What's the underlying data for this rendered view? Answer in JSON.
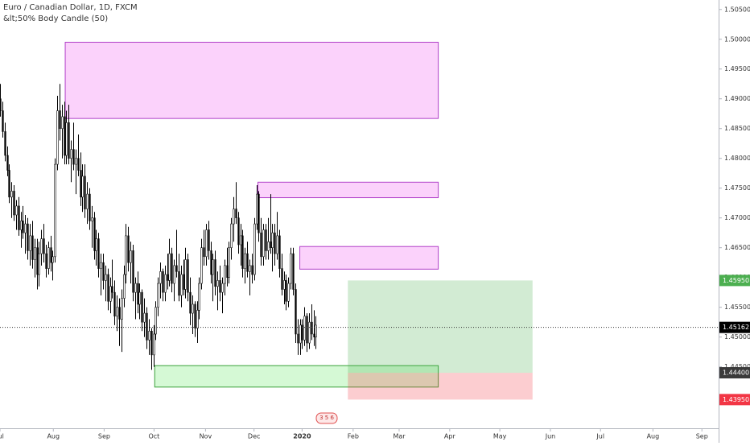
{
  "chart_data": {
    "type": "candlestick",
    "title": "Euro / Canadian Dollar, 1D, FXCM",
    "subtitle": "&lt;50% Body Candle (50)",
    "event_marker": "3 5 6",
    "up_color": "#ffffff",
    "down_color": "#000000",
    "wick_color": "#000000",
    "grid": false,
    "xlim": [
      0,
      314
    ],
    "xticks": [
      {
        "value": 0,
        "label": "Jul"
      },
      {
        "value": 23.3,
        "label": "Aug"
      },
      {
        "value": 45.5,
        "label": "Sep"
      },
      {
        "value": 67.3,
        "label": "Oct"
      },
      {
        "value": 89.8,
        "label": "Nov"
      },
      {
        "value": 111,
        "label": "Dec"
      },
      {
        "value": 132,
        "label": "2020"
      },
      {
        "value": 154.3,
        "label": "Feb"
      },
      {
        "value": 174.4,
        "label": "Mar"
      },
      {
        "value": 196.5,
        "label": "Apr"
      },
      {
        "value": 218.4,
        "label": "May"
      },
      {
        "value": 240.5,
        "label": "Jun"
      },
      {
        "value": 262.4,
        "label": "Jul"
      },
      {
        "value": 285.3,
        "label": "Aug"
      },
      {
        "value": 306.7,
        "label": "Sep"
      }
    ],
    "ylim": [
      1.43468,
      1.50659
    ],
    "yticks": [
      {
        "value": 1.505,
        "label": "1.50500"
      },
      {
        "value": 1.5,
        "label": "1.50000"
      },
      {
        "value": 1.495,
        "label": "1.49500"
      },
      {
        "value": 1.49,
        "label": "1.49000"
      },
      {
        "value": 1.485,
        "label": "1.48500"
      },
      {
        "value": 1.48,
        "label": "1.48000"
      },
      {
        "value": 1.475,
        "label": "1.47500"
      },
      {
        "value": 1.47,
        "label": "1.47000"
      },
      {
        "value": 1.465,
        "label": "1.46500"
      },
      {
        "value": 1.46,
        "label": "1.46000"
      },
      {
        "value": 1.455,
        "label": "1.45500"
      },
      {
        "value": 1.45,
        "label": "1.45000"
      },
      {
        "value": 1.445,
        "label": "1.44500"
      }
    ],
    "current_price": {
      "value": 1.45162,
      "label": "1.45162"
    },
    "price_labels": [
      {
        "value": 1.4595,
        "label": "1.45950",
        "color": "#4caf50"
      },
      {
        "value": 1.444,
        "label": "1.44400",
        "color": "#3a3a3a"
      },
      {
        "value": 1.4395,
        "label": "1.43950",
        "color": "#f23645"
      }
    ],
    "zones": [
      {
        "x1": 28.5,
        "x2": 191.5,
        "top": 1.4995,
        "bottom": 1.4867,
        "fill": "rgba(244,143,244,0.4)",
        "stroke": "#b040c8"
      },
      {
        "x1": 112.7,
        "x2": 191.5,
        "top": 1.476,
        "bottom": 1.4734,
        "fill": "rgba(244,143,244,0.4)",
        "stroke": "#b040c8"
      },
      {
        "x1": 131,
        "x2": 191.5,
        "top": 1.4652,
        "bottom": 1.4614,
        "fill": "rgba(244,143,244,0.4)",
        "stroke": "#b040c8"
      },
      {
        "x1": 67.6,
        "x2": 191.5,
        "top": 1.4452,
        "bottom": 1.4416,
        "fill": "rgba(150,240,150,0.4)",
        "stroke": "#3aa03a"
      },
      {
        "x1": 152,
        "x2": 232.7,
        "top": 1.4595,
        "bottom": 1.444,
        "fill": "rgba(76,175,80,0.25)",
        "stroke": "none"
      },
      {
        "x1": 152,
        "x2": 232.7,
        "top": 1.444,
        "bottom": 1.4395,
        "fill": "rgba(242,54,69,0.25)",
        "stroke": "none"
      }
    ],
    "candles": [
      [
        1.49,
        1.4925,
        1.487,
        1.488
      ],
      [
        1.488,
        1.4895,
        1.4835,
        1.4845
      ],
      [
        1.4845,
        1.486,
        1.4795,
        1.4805
      ],
      [
        1.4805,
        1.482,
        1.477,
        1.478
      ],
      [
        1.478,
        1.479,
        1.4725,
        1.4735
      ],
      [
        1.4735,
        1.476,
        1.47,
        1.4745
      ],
      [
        1.4745,
        1.4755,
        1.4695,
        1.4705
      ],
      [
        1.4705,
        1.473,
        1.468,
        1.472
      ],
      [
        1.472,
        1.4735,
        1.467,
        1.468
      ],
      [
        1.468,
        1.471,
        1.465,
        1.4695
      ],
      [
        1.4695,
        1.472,
        1.4665,
        1.4675
      ],
      [
        1.4675,
        1.4705,
        1.464,
        1.469
      ],
      [
        1.469,
        1.47,
        1.463,
        1.4645
      ],
      [
        1.4645,
        1.469,
        1.462,
        1.467
      ],
      [
        1.467,
        1.4695,
        1.4615,
        1.463
      ],
      [
        1.463,
        1.4665,
        1.46,
        1.465
      ],
      [
        1.465,
        1.4665,
        1.458,
        1.4605
      ],
      [
        1.4605,
        1.466,
        1.4585,
        1.464
      ],
      [
        1.464,
        1.468,
        1.462,
        1.4665
      ],
      [
        1.4665,
        1.469,
        1.4625,
        1.464
      ],
      [
        1.464,
        1.4655,
        1.46,
        1.4615
      ],
      [
        1.4615,
        1.466,
        1.4605,
        1.465
      ],
      [
        1.465,
        1.467,
        1.461,
        1.4625
      ],
      [
        1.4625,
        1.4645,
        1.4595,
        1.4635
      ],
      [
        1.4635,
        1.48,
        1.4625,
        1.479
      ],
      [
        1.479,
        1.4905,
        1.478,
        1.488
      ],
      [
        1.488,
        1.4925,
        1.483,
        1.485
      ],
      [
        1.485,
        1.489,
        1.48,
        1.487
      ],
      [
        1.487,
        1.4895,
        1.479,
        1.4805
      ],
      [
        1.4805,
        1.488,
        1.479,
        1.486
      ],
      [
        1.486,
        1.489,
        1.479,
        1.48
      ],
      [
        1.48,
        1.483,
        1.476,
        1.4815
      ],
      [
        1.4815,
        1.486,
        1.478,
        1.479
      ],
      [
        1.479,
        1.4815,
        1.474,
        1.48
      ],
      [
        1.48,
        1.484,
        1.477,
        1.478
      ],
      [
        1.478,
        1.481,
        1.472,
        1.4735
      ],
      [
        1.4735,
        1.479,
        1.471,
        1.477
      ],
      [
        1.477,
        1.479,
        1.47,
        1.4715
      ],
      [
        1.4715,
        1.476,
        1.469,
        1.474
      ],
      [
        1.474,
        1.475,
        1.468,
        1.4695
      ],
      [
        1.4695,
        1.472,
        1.465,
        1.47
      ],
      [
        1.47,
        1.471,
        1.463,
        1.4645
      ],
      [
        1.4645,
        1.468,
        1.462,
        1.4665
      ],
      [
        1.4665,
        1.4675,
        1.46,
        1.4615
      ],
      [
        1.4615,
        1.464,
        1.457,
        1.4625
      ],
      [
        1.4625,
        1.464,
        1.458,
        1.4595
      ],
      [
        1.4595,
        1.462,
        1.456,
        1.4605
      ],
      [
        1.4605,
        1.4615,
        1.4545,
        1.456
      ],
      [
        1.456,
        1.46,
        1.454,
        1.4585
      ],
      [
        1.4585,
        1.463,
        1.4565,
        1.4575
      ],
      [
        1.4575,
        1.4595,
        1.452,
        1.4535
      ],
      [
        1.4535,
        1.457,
        1.451,
        1.455
      ],
      [
        1.455,
        1.4565,
        1.4485,
        1.453
      ],
      [
        1.453,
        1.458,
        1.4475,
        1.4565
      ],
      [
        1.4565,
        1.462,
        1.455,
        1.4605
      ],
      [
        1.4605,
        1.469,
        1.459,
        1.467
      ],
      [
        1.467,
        1.4685,
        1.461,
        1.4625
      ],
      [
        1.4625,
        1.466,
        1.459,
        1.4645
      ],
      [
        1.4645,
        1.4655,
        1.456,
        1.4575
      ],
      [
        1.4575,
        1.46,
        1.453,
        1.459
      ],
      [
        1.459,
        1.461,
        1.454,
        1.4555
      ],
      [
        1.4555,
        1.459,
        1.453,
        1.4575
      ],
      [
        1.4575,
        1.458,
        1.451,
        1.4525
      ],
      [
        1.4525,
        1.4565,
        1.45,
        1.454
      ],
      [
        1.454,
        1.455,
        1.448,
        1.4495
      ],
      [
        1.4495,
        1.453,
        1.447,
        1.451
      ],
      [
        1.451,
        1.4515,
        1.4445,
        1.447
      ],
      [
        1.447,
        1.452,
        1.445,
        1.4505
      ],
      [
        1.4505,
        1.456,
        1.4495,
        1.455
      ],
      [
        1.455,
        1.46,
        1.4535,
        1.459
      ],
      [
        1.459,
        1.4625,
        1.4565,
        1.461
      ],
      [
        1.461,
        1.4615,
        1.456,
        1.4575
      ],
      [
        1.4575,
        1.462,
        1.456,
        1.4605
      ],
      [
        1.4605,
        1.464,
        1.458,
        1.4595
      ],
      [
        1.4595,
        1.4665,
        1.4585,
        1.464
      ],
      [
        1.464,
        1.465,
        1.4575,
        1.459
      ],
      [
        1.459,
        1.463,
        1.456,
        1.462
      ],
      [
        1.462,
        1.468,
        1.46,
        1.461
      ],
      [
        1.461,
        1.464,
        1.456,
        1.457
      ],
      [
        1.457,
        1.462,
        1.455,
        1.4605
      ],
      [
        1.4605,
        1.463,
        1.457,
        1.458
      ],
      [
        1.458,
        1.465,
        1.4565,
        1.463
      ],
      [
        1.463,
        1.464,
        1.456,
        1.4575
      ],
      [
        1.4575,
        1.46,
        1.452,
        1.454
      ],
      [
        1.454,
        1.457,
        1.4505,
        1.4555
      ],
      [
        1.4555,
        1.456,
        1.45,
        1.4515
      ],
      [
        1.4515,
        1.456,
        1.449,
        1.4545
      ],
      [
        1.4545,
        1.46,
        1.453,
        1.459
      ],
      [
        1.459,
        1.4665,
        1.458,
        1.465
      ],
      [
        1.465,
        1.468,
        1.462,
        1.4635
      ],
      [
        1.4635,
        1.469,
        1.462,
        1.468
      ],
      [
        1.468,
        1.4695,
        1.463,
        1.4645
      ],
      [
        1.4645,
        1.466,
        1.459,
        1.4605
      ],
      [
        1.4605,
        1.464,
        1.456,
        1.463
      ],
      [
        1.463,
        1.4645,
        1.457,
        1.4585
      ],
      [
        1.4585,
        1.461,
        1.4545,
        1.4595
      ],
      [
        1.4595,
        1.462,
        1.456,
        1.4575
      ],
      [
        1.4575,
        1.46,
        1.454,
        1.459
      ],
      [
        1.459,
        1.463,
        1.457,
        1.462
      ],
      [
        1.462,
        1.465,
        1.4585,
        1.46
      ],
      [
        1.46,
        1.466,
        1.459,
        1.465
      ],
      [
        1.465,
        1.47,
        1.463,
        1.469
      ],
      [
        1.469,
        1.4735,
        1.466,
        1.4715
      ],
      [
        1.4715,
        1.476,
        1.469,
        1.47
      ],
      [
        1.47,
        1.471,
        1.464,
        1.4655
      ],
      [
        1.4655,
        1.469,
        1.462,
        1.467
      ],
      [
        1.467,
        1.468,
        1.46,
        1.4615
      ],
      [
        1.4615,
        1.465,
        1.459,
        1.464
      ],
      [
        1.464,
        1.466,
        1.46,
        1.461
      ],
      [
        1.461,
        1.463,
        1.457,
        1.462
      ],
      [
        1.462,
        1.464,
        1.459,
        1.4605
      ],
      [
        1.4605,
        1.47,
        1.4595,
        1.469
      ],
      [
        1.469,
        1.4755,
        1.468,
        1.474
      ],
      [
        1.474,
        1.4745,
        1.466,
        1.4675
      ],
      [
        1.4675,
        1.47,
        1.462,
        1.4635
      ],
      [
        1.4635,
        1.469,
        1.462,
        1.468
      ],
      [
        1.468,
        1.469,
        1.463,
        1.4645
      ],
      [
        1.4645,
        1.47,
        1.463,
        1.466
      ],
      [
        1.466,
        1.474,
        1.464,
        1.465
      ],
      [
        1.465,
        1.469,
        1.461,
        1.4675
      ],
      [
        1.4675,
        1.469,
        1.462,
        1.464
      ],
      [
        1.464,
        1.471,
        1.463,
        1.467
      ],
      [
        1.467,
        1.468,
        1.46,
        1.4615
      ],
      [
        1.4615,
        1.464,
        1.457,
        1.458
      ],
      [
        1.458,
        1.461,
        1.4555,
        1.4595
      ],
      [
        1.4595,
        1.4605,
        1.4545,
        1.456
      ],
      [
        1.456,
        1.46,
        1.455,
        1.459
      ],
      [
        1.459,
        1.465,
        1.458,
        1.464
      ],
      [
        1.464,
        1.465,
        1.457,
        1.458
      ],
      [
        1.458,
        1.459,
        1.449,
        1.4505
      ],
      [
        1.4505,
        1.453,
        1.447,
        1.449
      ],
      [
        1.449,
        1.453,
        1.447,
        1.452
      ],
      [
        1.452,
        1.453,
        1.448,
        1.4495
      ],
      [
        1.4495,
        1.455,
        1.4485,
        1.4535
      ],
      [
        1.4535,
        1.454,
        1.4475,
        1.449
      ],
      [
        1.449,
        1.454,
        1.448,
        1.4525
      ],
      [
        1.4525,
        1.4555,
        1.4495,
        1.4505
      ],
      [
        1.4505,
        1.4545,
        1.4485,
        1.45
      ],
      [
        1.45,
        1.4535,
        1.448,
        1.452
      ]
    ]
  }
}
